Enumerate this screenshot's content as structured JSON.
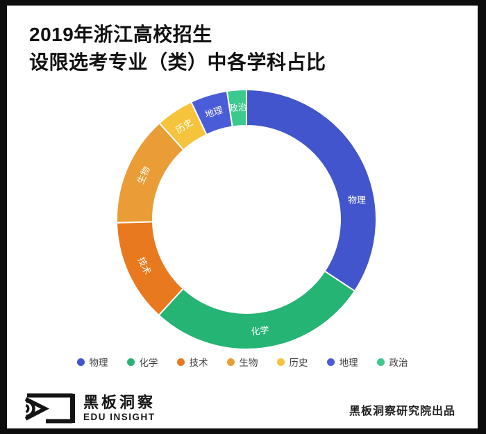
{
  "title": {
    "line1": "2019年浙江高校招生",
    "line2": "设限选考专业（类）中各学科占比"
  },
  "chart_data": {
    "type": "pie",
    "subtype": "donut",
    "title": "2019年浙江高校招生设限选考专业（类）中各学科占比",
    "unit": "percent",
    "categories": [
      "物理",
      "化学",
      "技术",
      "生物",
      "历史",
      "地理",
      "政治"
    ],
    "values": [
      34.3,
      27.5,
      12.8,
      13.7,
      4.7,
      4.6,
      2.4
    ],
    "colors": [
      "#4255cc",
      "#25b474",
      "#e8791f",
      "#ea9d36",
      "#f5c43c",
      "#4a5cd8",
      "#3cc98e"
    ],
    "start_angle_deg": 0,
    "clockwise": true,
    "inner_radius_ratio": 0.72,
    "outer_radius_px": 187,
    "inner_radius_px": 135,
    "label_position": "inside",
    "label_color": "#ffffff",
    "segment_gap_color": "#ffffff",
    "legend_position": "bottom",
    "label_overrides": {
      "物理": {
        "angle_deg": 80,
        "rotate_deg": 0
      }
    }
  },
  "footer": {
    "logo_cn": "黑板洞察",
    "logo_en": "EDU INSIGHT",
    "credit": "黑板洞察研究院出品"
  },
  "colors": {
    "frame": "#0d0d0d",
    "panel": "#ffffff",
    "title_text": "#111111",
    "legend_text": "#3c3c3c",
    "credit_text": "#222222",
    "logo": "#141414"
  }
}
